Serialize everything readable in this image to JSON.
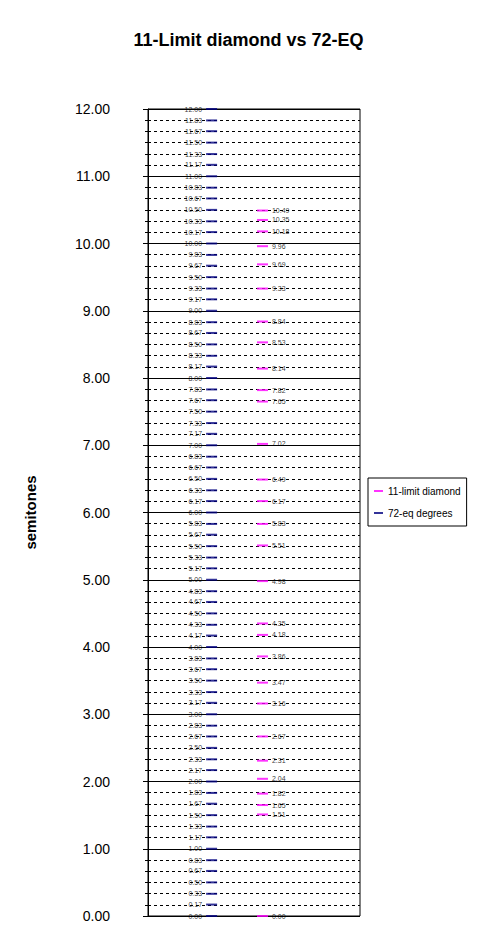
{
  "chart_data": {
    "type": "scatter",
    "title": "11-Limit diamond vs 72-EQ",
    "ylabel": "semitones",
    "ylim": [
      0,
      12
    ],
    "yticks": [
      {
        "value": 0,
        "label": "0.00"
      },
      {
        "value": 1,
        "label": "1.00"
      },
      {
        "value": 2,
        "label": "2.00"
      },
      {
        "value": 3,
        "label": "3.00"
      },
      {
        "value": 4,
        "label": "4.00"
      },
      {
        "value": 5,
        "label": "5.00"
      },
      {
        "value": 6,
        "label": "6.00"
      },
      {
        "value": 7,
        "label": "7.00"
      },
      {
        "value": 8,
        "label": "8.00"
      },
      {
        "value": 9,
        "label": "9.00"
      },
      {
        "value": 10,
        "label": "10.00"
      },
      {
        "value": 11,
        "label": "11.00"
      },
      {
        "value": 12,
        "label": "12.00"
      }
    ],
    "grid": true,
    "legend": "right",
    "data_labels": true,
    "tick_labels": "y",
    "series": [
      {
        "name": "11-limit diamond",
        "color": "#ff00ff",
        "marker": "dash",
        "values": [
          0,
          1.51,
          1.65,
          1.82,
          2.04,
          2.31,
          2.67,
          3.16,
          3.47,
          3.86,
          4.18,
          4.35,
          4.98,
          5.51,
          5.83,
          6.17,
          6.49,
          7.02,
          7.65,
          7.82,
          8.14,
          8.53,
          8.84,
          9.33,
          9.69,
          9.96,
          10.18,
          10.35,
          10.49
        ],
        "value_labels": [
          "0.00",
          "1.51",
          "1.65",
          "1.82",
          "2.04",
          "2.31",
          "2.67",
          "3.16",
          "3.47",
          "3.86",
          "4.18",
          "4.35",
          "4.98",
          "5.51",
          "5.83",
          "6.17",
          "6.49",
          "7.02",
          "7.65",
          "7.82",
          "8.14",
          "8.53",
          "8.84",
          "9.33",
          "9.69",
          "9.96",
          "10.18",
          "10.35",
          "10.49"
        ]
      },
      {
        "name": "72-eq degrees",
        "color": "#000080",
        "marker": "dash",
        "values": [
          0,
          0.17,
          0.33,
          0.5,
          0.67,
          0.83,
          1,
          1.17,
          1.33,
          1.5,
          1.67,
          1.83,
          2,
          2.17,
          2.33,
          2.5,
          2.67,
          2.83,
          3,
          3.17,
          3.33,
          3.5,
          3.67,
          3.83,
          4,
          4.17,
          4.33,
          4.5,
          4.67,
          4.83,
          5,
          5.17,
          5.33,
          5.5,
          5.67,
          5.83,
          6,
          6.17,
          6.33,
          6.5,
          6.67,
          6.83,
          7,
          7.17,
          7.33,
          7.5,
          7.67,
          7.83,
          8,
          8.17,
          8.33,
          8.5,
          8.67,
          8.83,
          9,
          9.17,
          9.33,
          9.5,
          9.67,
          9.83,
          10,
          10.17,
          10.33,
          10.5,
          10.67,
          10.83,
          11,
          11.17,
          11.33,
          11.5,
          11.67,
          11.83,
          12
        ],
        "value_labels": [
          "0.00",
          "0.17",
          "0.33",
          "0.50",
          "0.67",
          "0.83",
          "1.00",
          "1.17",
          "1.33",
          "1.50",
          "1.67",
          "1.83",
          "2.00",
          "2.17",
          "2.33",
          "2.50",
          "2.67",
          "2.83",
          "3.00",
          "3.17",
          "3.33",
          "3.50",
          "3.67",
          "3.83",
          "4.00",
          "4.17",
          "4.33",
          "4.50",
          "4.67",
          "4.83",
          "5.00",
          "5.17",
          "5.33",
          "5.50",
          "5.67",
          "5.83",
          "6.00",
          "6.17",
          "6.33",
          "6.50",
          "6.67",
          "6.83",
          "7.00",
          "7.17",
          "7.33",
          "7.50",
          "7.67",
          "7.83",
          "8.00",
          "8.17",
          "8.33",
          "8.50",
          "8.67",
          "8.83",
          "9.00",
          "9.17",
          "9.33",
          "9.50",
          "9.67",
          "9.83",
          "10.00",
          "10.17",
          "10.33",
          "10.50",
          "10.67",
          "10.83",
          "11.00",
          "11.17",
          "11.33",
          "11.50",
          "11.67",
          "11.83",
          "12.00"
        ]
      }
    ]
  }
}
